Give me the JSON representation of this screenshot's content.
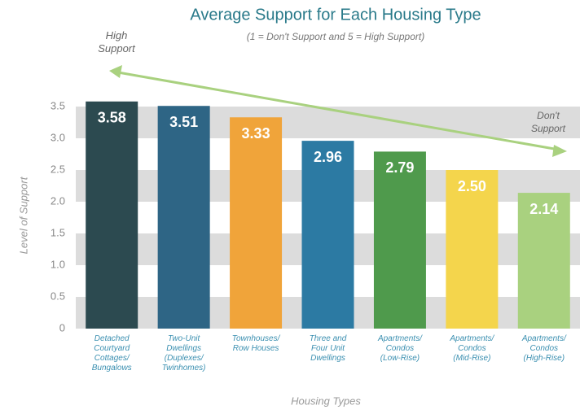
{
  "chart_data": {
    "type": "bar",
    "title": "Average Support for Each Housing Type",
    "subtitle": "(1 = Don't Support and 5 = High Support)",
    "y_label": "Level of Support",
    "x_label": "Housing Types",
    "annotations": [
      "High\nSupport",
      "Don't\nSupport"
    ],
    "categories": [
      "Detached\nCourtyard\nCottages/\nBungalows",
      "Two-Unit\nDwellings\n(Duplexes/\nTwinhomes)",
      "Townhouses/\nRow Houses",
      "Three and\nFour Unit\nDwellings",
      "Apartments/\nCondos\n(Low-Rise)",
      "Apartments/\nCondos\n(Mid-Rise)",
      "Apartments/\nCondos\n(High-Rise)"
    ],
    "values": [
      3.58,
      3.51,
      3.33,
      2.96,
      2.79,
      2.5,
      2.14
    ],
    "value_labels": [
      "3.58",
      "3.51",
      "3.33",
      "2.96",
      "2.79",
      "2.50",
      "2.14"
    ],
    "colors": [
      "#2c4a50",
      "#2e6585",
      "#f0a43a",
      "#2c7aa3",
      "#4f9a4c",
      "#f4d54c",
      "#a9d17f"
    ],
    "ylim": [
      0,
      3.5
    ],
    "yticks": [
      0,
      0.5,
      {
        "value": 1,
        "label": "1.0"
      },
      1.5,
      {
        "value": 2,
        "label": "2.0"
      },
      2.5,
      {
        "value": 3,
        "label": "3.0"
      },
      3.5
    ],
    "grid": true
  }
}
